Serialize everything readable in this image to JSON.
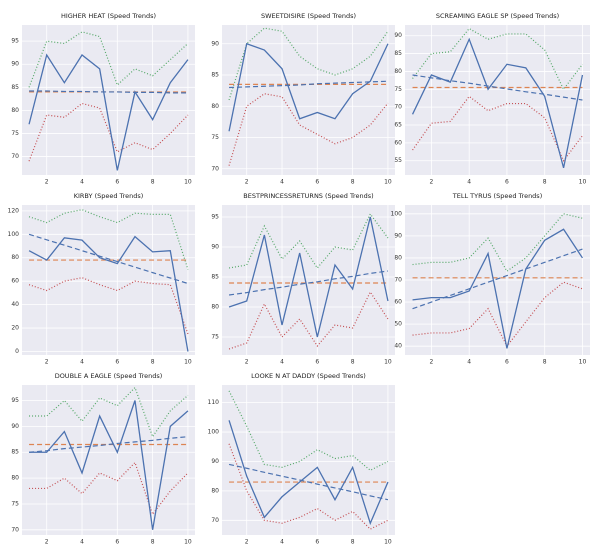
{
  "chart_data": [
    {
      "type": "line",
      "title": "HIGHER HEAT (Speed Trends)",
      "x": [
        1,
        2,
        3,
        4,
        5,
        6,
        7,
        8,
        9,
        10
      ],
      "xlim": [
        0.6,
        10.4
      ],
      "xticks": [
        2,
        4,
        6,
        8,
        10
      ],
      "ylim": [
        66,
        98.5
      ],
      "yticks": [
        70,
        75,
        80,
        85,
        90,
        95
      ],
      "grid": true,
      "series": [
        {
          "color": "#55a868",
          "style": "dotted",
          "values": [
            85,
            95,
            94.5,
            97,
            96,
            85.5,
            89,
            87.5,
            91,
            94.5
          ]
        },
        {
          "color": "#c44e52",
          "style": "dotted",
          "values": [
            69,
            79,
            78.5,
            81.5,
            80.5,
            71,
            73,
            71.5,
            75,
            79
          ]
        },
        {
          "color": "#dd8452",
          "style": "dashed",
          "values": [
            84,
            84,
            84,
            84,
            84,
            84,
            84,
            84,
            84,
            84
          ]
        },
        {
          "color": "#4c72b0",
          "style": "dashed",
          "values": [
            84.2,
            84.2,
            84.1,
            84.1,
            84,
            84,
            83.9,
            83.9,
            83.8,
            83.8
          ]
        },
        {
          "color": "#4c72b0",
          "style": "solid",
          "values": [
            77,
            92,
            86,
            92,
            89,
            67,
            84,
            78,
            86,
            91
          ]
        }
      ]
    },
    {
      "type": "line",
      "title": "SWEETDISIRE (Speed Trends)",
      "x": [
        1,
        2,
        3,
        4,
        5,
        6,
        7,
        8,
        9,
        10
      ],
      "xlim": [
        0.6,
        10.4
      ],
      "xticks": [
        2,
        4,
        6,
        8,
        10
      ],
      "ylim": [
        69,
        93
      ],
      "yticks": [
        70,
        75,
        80,
        85,
        90
      ],
      "grid": true,
      "series": [
        {
          "color": "#55a868",
          "style": "dotted",
          "values": [
            81,
            90,
            92.5,
            92,
            88,
            86,
            85,
            86,
            88,
            92
          ]
        },
        {
          "color": "#c44e52",
          "style": "dotted",
          "values": [
            70.5,
            80,
            82,
            81.5,
            77,
            75.5,
            74,
            75,
            77,
            80.5
          ]
        },
        {
          "color": "#dd8452",
          "style": "dashed",
          "values": [
            83.5,
            83.5,
            83.5,
            83.5,
            83.5,
            83.5,
            83.5,
            83.5,
            83.5,
            83.5
          ]
        },
        {
          "color": "#4c72b0",
          "style": "dashed",
          "values": [
            83,
            83.1,
            83.2,
            83.3,
            83.4,
            83.6,
            83.7,
            83.8,
            83.9,
            84
          ]
        },
        {
          "color": "#4c72b0",
          "style": "solid",
          "values": [
            76,
            90,
            89,
            86,
            78,
            79,
            78,
            82,
            84,
            90
          ]
        }
      ]
    },
    {
      "type": "line",
      "title": "SCREAMING EAGLE SP (Speed Trends)",
      "x": [
        1,
        2,
        3,
        4,
        5,
        6,
        7,
        8,
        9,
        10
      ],
      "xlim": [
        0.6,
        10.4
      ],
      "xticks": [
        2,
        4,
        6,
        8,
        10
      ],
      "ylim": [
        51,
        93
      ],
      "yticks": [
        55,
        60,
        65,
        70,
        75,
        80,
        85,
        90
      ],
      "grid": true,
      "series": [
        {
          "color": "#55a868",
          "style": "dotted",
          "values": [
            78,
            85,
            85.5,
            92,
            89,
            90.5,
            90.5,
            86,
            75,
            82
          ]
        },
        {
          "color": "#c44e52",
          "style": "dotted",
          "values": [
            58,
            65.5,
            66,
            73,
            69,
            71,
            71,
            67,
            55,
            62
          ]
        },
        {
          "color": "#dd8452",
          "style": "dashed",
          "values": [
            75.5,
            75.5,
            75.5,
            75.5,
            75.5,
            75.5,
            75.5,
            75.5,
            75.5,
            75.5
          ]
        },
        {
          "color": "#4c72b0",
          "style": "dashed",
          "values": [
            79,
            78.2,
            77.4,
            76.7,
            75.9,
            75.1,
            74.3,
            73.6,
            72.8,
            72
          ]
        },
        {
          "color": "#4c72b0",
          "style": "solid",
          "values": [
            68,
            79,
            77,
            89,
            75,
            82,
            81,
            73,
            53,
            79
          ]
        }
      ]
    },
    {
      "type": "line",
      "title": "KIRBY (Speed Trends)",
      "x": [
        1,
        2,
        3,
        4,
        5,
        6,
        7,
        8,
        9,
        10
      ],
      "xlim": [
        0.6,
        10.4
      ],
      "xticks": [
        2,
        4,
        6,
        8,
        10
      ],
      "ylim": [
        -3,
        125
      ],
      "yticks": [
        0,
        20,
        40,
        60,
        80,
        100,
        120
      ],
      "grid": true,
      "series": [
        {
          "color": "#55a868",
          "style": "dotted",
          "values": [
            115,
            110,
            118,
            121,
            115,
            110,
            118,
            117,
            117,
            70
          ]
        },
        {
          "color": "#c44e52",
          "style": "dotted",
          "values": [
            57,
            52,
            60,
            63,
            57,
            52,
            60,
            58,
            57,
            15
          ]
        },
        {
          "color": "#dd8452",
          "style": "dashed",
          "values": [
            78,
            78,
            78,
            78,
            78,
            78,
            78,
            78,
            78,
            78
          ]
        },
        {
          "color": "#4c72b0",
          "style": "dashed",
          "values": [
            100,
            95.3,
            90.7,
            86,
            81.3,
            76.7,
            72,
            67.3,
            62.7,
            58
          ]
        },
        {
          "color": "#4c72b0",
          "style": "solid",
          "values": [
            86,
            78,
            97,
            95,
            80,
            75,
            98,
            85,
            86,
            0
          ]
        }
      ]
    },
    {
      "type": "line",
      "title": "BESTPRINCESSRETURNS (Speed Trends)",
      "x": [
        1,
        2,
        3,
        4,
        5,
        6,
        7,
        8,
        9,
        10
      ],
      "xlim": [
        0.6,
        10.4
      ],
      "xticks": [
        2,
        4,
        6,
        8,
        10
      ],
      "ylim": [
        72,
        97
      ],
      "yticks": [
        75,
        80,
        85,
        90,
        95
      ],
      "grid": true,
      "series": [
        {
          "color": "#55a868",
          "style": "dotted",
          "values": [
            86.5,
            87,
            93.5,
            88,
            91,
            86.5,
            90,
            89.5,
            95.5,
            91.5
          ]
        },
        {
          "color": "#c44e52",
          "style": "dotted",
          "values": [
            73,
            74,
            80.5,
            75,
            78,
            73.5,
            77,
            76.5,
            82.5,
            78
          ]
        },
        {
          "color": "#dd8452",
          "style": "dashed",
          "values": [
            84,
            84,
            84,
            84,
            84,
            84,
            84,
            84,
            84,
            84
          ]
        },
        {
          "color": "#4c72b0",
          "style": "dashed",
          "values": [
            82,
            82.4,
            82.9,
            83.3,
            83.8,
            84.2,
            84.7,
            85.1,
            85.6,
            86
          ]
        },
        {
          "color": "#4c72b0",
          "style": "solid",
          "values": [
            80,
            81,
            92,
            77,
            89,
            75,
            87,
            83,
            95,
            81
          ]
        }
      ]
    },
    {
      "type": "line",
      "title": "TELL TYRUS (Speed Trends)",
      "x": [
        1,
        2,
        3,
        4,
        5,
        6,
        7,
        8,
        9,
        10
      ],
      "xlim": [
        0.6,
        10.4
      ],
      "xticks": [
        2,
        4,
        6,
        8,
        10
      ],
      "ylim": [
        36,
        104
      ],
      "yticks": [
        40,
        50,
        60,
        70,
        80,
        90,
        100
      ],
      "grid": true,
      "series": [
        {
          "color": "#55a868",
          "style": "dotted",
          "values": [
            77,
            78,
            78,
            80,
            89,
            74,
            80,
            90,
            100,
            98
          ]
        },
        {
          "color": "#c44e52",
          "style": "dotted",
          "values": [
            45,
            46,
            46,
            48,
            57,
            40,
            51,
            62,
            69,
            66
          ]
        },
        {
          "color": "#dd8452",
          "style": "dashed",
          "values": [
            71,
            71,
            71,
            71,
            71,
            71,
            71,
            71,
            71,
            71
          ]
        },
        {
          "color": "#4c72b0",
          "style": "dashed",
          "values": [
            57,
            60,
            63,
            66,
            69,
            72,
            75,
            78,
            81,
            84
          ]
        },
        {
          "color": "#4c72b0",
          "style": "solid",
          "values": [
            61,
            62,
            62,
            65,
            82,
            39,
            75,
            88,
            93,
            80
          ]
        }
      ]
    },
    {
      "type": "line",
      "title": "DOUBLE A EAGLE (Speed Trends)",
      "x": [
        1,
        2,
        3,
        4,
        5,
        6,
        7,
        8,
        9,
        10
      ],
      "xlim": [
        0.6,
        10.4
      ],
      "xticks": [
        2,
        4,
        6,
        8,
        10
      ],
      "ylim": [
        69,
        98
      ],
      "yticks": [
        70,
        75,
        80,
        85,
        90,
        95
      ],
      "grid": true,
      "series": [
        {
          "color": "#55a868",
          "style": "dotted",
          "values": [
            92,
            92,
            95,
            91,
            95.5,
            94,
            97.5,
            88,
            93,
            96
          ]
        },
        {
          "color": "#c44e52",
          "style": "dotted",
          "values": [
            78,
            78,
            80,
            77,
            81,
            79.5,
            83,
            73,
            77.5,
            81
          ]
        },
        {
          "color": "#dd8452",
          "style": "dashed",
          "values": [
            86.5,
            86.5,
            86.5,
            86.5,
            86.5,
            86.5,
            86.5,
            86.5,
            86.5,
            86.5
          ]
        },
        {
          "color": "#4c72b0",
          "style": "dashed",
          "values": [
            85,
            85.3,
            85.7,
            86,
            86.3,
            86.7,
            87,
            87.3,
            87.7,
            88
          ]
        },
        {
          "color": "#4c72b0",
          "style": "solid",
          "values": [
            85,
            85,
            89,
            81,
            92,
            85,
            95,
            70,
            90,
            93
          ]
        }
      ]
    },
    {
      "type": "line",
      "title": "LOOKE N AT DADDY (Speed Trends)",
      "x": [
        1,
        2,
        3,
        4,
        5,
        6,
        7,
        8,
        9,
        10
      ],
      "xlim": [
        0.6,
        10.4
      ],
      "xticks": [
        2,
        4,
        6,
        8,
        10
      ],
      "ylim": [
        65,
        116
      ],
      "yticks": [
        70,
        80,
        90,
        100,
        110
      ],
      "grid": true,
      "series": [
        {
          "color": "#55a868",
          "style": "dotted",
          "values": [
            114,
            102,
            89,
            88,
            90,
            94,
            91,
            92,
            87,
            90
          ]
        },
        {
          "color": "#c44e52",
          "style": "dotted",
          "values": [
            96,
            80,
            70,
            69,
            71,
            74,
            70,
            73,
            67,
            70
          ]
        },
        {
          "color": "#dd8452",
          "style": "dashed",
          "values": [
            83,
            83,
            83,
            83,
            83,
            83,
            83,
            83,
            83,
            83
          ]
        },
        {
          "color": "#4c72b0",
          "style": "dashed",
          "values": [
            89,
            87.7,
            86.3,
            85,
            83.7,
            82.3,
            81,
            79.7,
            78.3,
            77
          ]
        },
        {
          "color": "#4c72b0",
          "style": "solid",
          "values": [
            104,
            85,
            71,
            78,
            83,
            88,
            77,
            88,
            69,
            83
          ]
        }
      ]
    }
  ]
}
